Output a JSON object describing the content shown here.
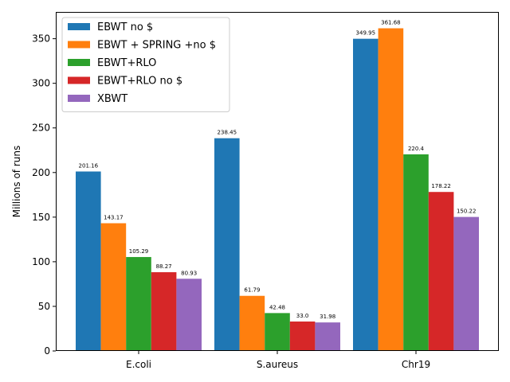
{
  "chart_data": {
    "type": "bar",
    "categories": [
      "E.coli",
      "S.aureus",
      "Chr19"
    ],
    "series": [
      {
        "name": "EBWT no $",
        "color": "#1f77b4",
        "values": [
          201.16,
          238.45,
          349.95
        ],
        "labels": [
          "201.16",
          "238.45",
          "349.95"
        ]
      },
      {
        "name": "EBWT + SPRING +no $",
        "color": "#ff7f0e",
        "values": [
          143.17,
          61.79,
          361.68
        ],
        "labels": [
          "143.17",
          "61.79",
          "361.68"
        ]
      },
      {
        "name": "EBWT+RLO",
        "color": "#2ca02c",
        "values": [
          105.29,
          42.48,
          220.4
        ],
        "labels": [
          "105.29",
          "42.48",
          "220.4"
        ]
      },
      {
        "name": "EBWT+RLO no $",
        "color": "#d62728",
        "values": [
          88.27,
          33.0,
          178.22
        ],
        "labels": [
          "88.27",
          "33.0",
          "178.22"
        ]
      },
      {
        "name": "XBWT",
        "color": "#9467bd",
        "values": [
          80.93,
          31.98,
          150.22
        ],
        "labels": [
          "80.93",
          "31.98",
          "150.22"
        ]
      }
    ],
    "title": "",
    "xlabel": "",
    "ylabel": "Millions of runs",
    "ylim": [
      0,
      380
    ],
    "yticks": [
      0,
      50,
      100,
      150,
      200,
      250,
      300,
      350
    ],
    "grid": false,
    "legend_position": "top-left"
  }
}
